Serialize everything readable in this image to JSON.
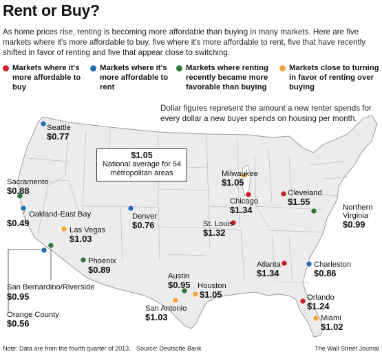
{
  "title": "Rent or Buy?",
  "intro": "As home prices rise, renting is becoming more affordable than buying in many markets. Here are five markets where it's more affordable to buy, five where it's more affordable to rent, five that have recently shifted in favor of renting and five that appear close to switching.",
  "colors": {
    "buy": "#c8232b",
    "rent": "#2b6cb3",
    "recent": "#2f7a3a",
    "close": "#f2a341",
    "land": "#ececec",
    "border": "#bbbbbb"
  },
  "legend": [
    {
      "key": "buy",
      "label": "Markets where it's more affordable to buy"
    },
    {
      "key": "rent",
      "label": "Markets where it's more affordable to rent"
    },
    {
      "key": "recent",
      "label": "Markets where renting recently became more favorable than buying"
    },
    {
      "key": "close",
      "label": "Markets close to turning in favor of renting over buying"
    }
  ],
  "note_dollar": "Dollar figures represent the amount a new renter spends for every dollar a new buyer spends on housing per month.",
  "national": {
    "value": "$1.05",
    "label": "National average for 54 metropolitan areas"
  },
  "markets": [
    {
      "city": "Seattle",
      "price": "$0.77",
      "category": "rent"
    },
    {
      "city": "Sacramento",
      "price": "$0.88",
      "category": "recent"
    },
    {
      "city": "Oakland-East Bay",
      "price": "$0.49",
      "category": "rent"
    },
    {
      "city": "Las Vegas",
      "price": "$1.03",
      "category": "close"
    },
    {
      "city": "San Bernardino/Riverside",
      "price": "$0.95",
      "category": "recent"
    },
    {
      "city": "Orange County",
      "price": "$0.56",
      "category": "rent"
    },
    {
      "city": "Phoenix",
      "price": "$0.89",
      "category": "recent"
    },
    {
      "city": "Denver",
      "price": "$0.76",
      "category": "rent"
    },
    {
      "city": "Austin",
      "price": "$0.95",
      "category": "recent"
    },
    {
      "city": "San Antonio",
      "price": "$1.03",
      "category": "close"
    },
    {
      "city": "Houston",
      "price": "$1.05",
      "category": "close"
    },
    {
      "city": "Milwaukee",
      "price": "$1.05",
      "category": "close"
    },
    {
      "city": "Chicago",
      "price": "$1.34",
      "category": "buy"
    },
    {
      "city": "St. Louis",
      "price": "$1.32",
      "category": "buy"
    },
    {
      "city": "Cleveland",
      "price": "$1.55",
      "category": "buy"
    },
    {
      "city": "Northern Virginia",
      "price": "$0.99",
      "category": "recent"
    },
    {
      "city": "Atlanta",
      "price": "$1.34",
      "category": "buy"
    },
    {
      "city": "Charleston",
      "price": "$0.86",
      "category": "rent"
    },
    {
      "city": "Orlando",
      "price": "$1.24",
      "category": "buy"
    },
    {
      "city": "Miami",
      "price": "$1.02",
      "category": "close"
    }
  ],
  "footer": {
    "note": "Note: Data are from the fourth quarter of 2013.",
    "source": "Source: Deutsche Bank",
    "credit": "The Wall Street Journal"
  }
}
